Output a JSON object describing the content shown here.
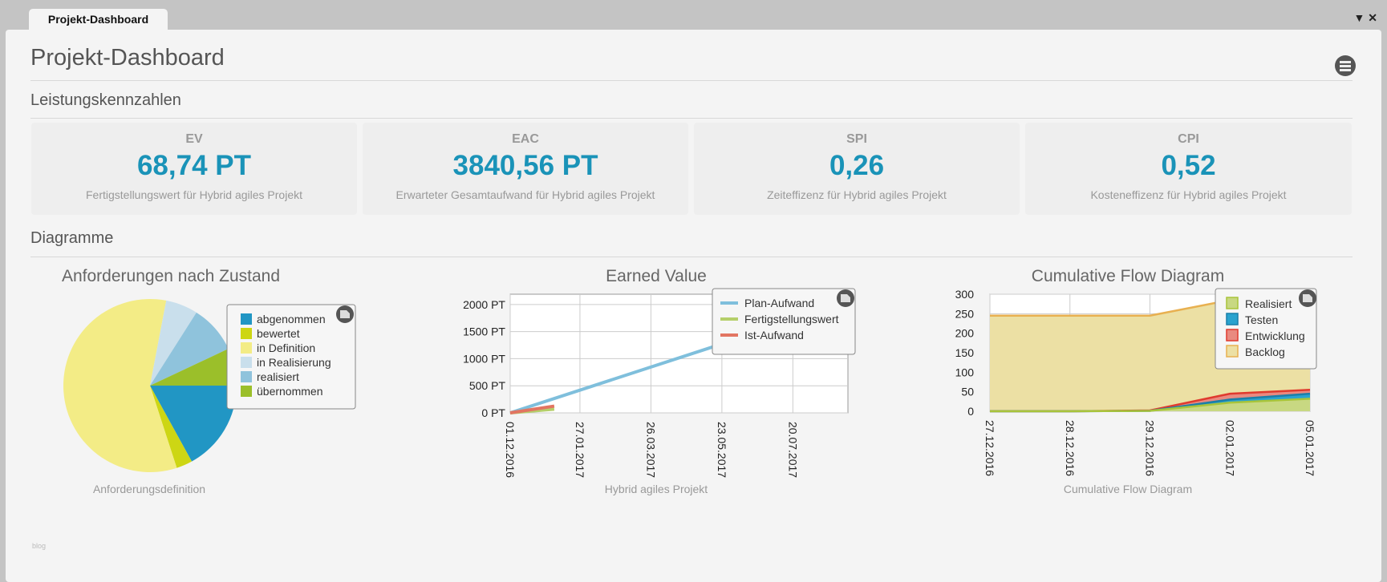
{
  "tab": {
    "label": "Projekt-Dashboard"
  },
  "window_controls": {
    "dropdown": "▼",
    "close": "✕"
  },
  "page": {
    "title": "Projekt-Dashboard",
    "sections": {
      "kpi": "Leistungskennzahlen",
      "charts": "Diagramme"
    },
    "footer_text": "blog"
  },
  "kpis": [
    {
      "label": "EV",
      "value": "68,74 PT",
      "desc": "Fertigstellungswert für Hybrid agiles Projekt"
    },
    {
      "label": "EAC",
      "value": "3840,56 PT",
      "desc": "Erwarteter Gesamtaufwand für Hybrid agiles Projekt"
    },
    {
      "label": "SPI",
      "value": "0,26",
      "desc": "Zeiteffizenz für Hybrid agiles Projekt"
    },
    {
      "label": "CPI",
      "value": "0,52",
      "desc": "Kosteneffizenz für Hybrid agiles Projekt"
    }
  ],
  "colors": {
    "accent": "#1a93b8"
  },
  "chart_data": [
    {
      "type": "pie",
      "title": "Anforderungen nach Zustand",
      "subtitle": "Anforderungsdefinition",
      "legend": "right",
      "categories": [
        "abgenommen",
        "bewertet",
        "in Definition",
        "in Realisierung",
        "realisiert",
        "übernommen"
      ],
      "values": [
        17,
        3,
        58,
        6,
        9,
        7
      ],
      "colors": [
        "#2196c4",
        "#cdd614",
        "#f3ec86",
        "#c9dfec",
        "#8fc3dc",
        "#9bbf2a"
      ]
    },
    {
      "type": "line",
      "title": "Earned Value",
      "subtitle": "Hybrid agiles Projekt",
      "legend": "top-right",
      "grid": true,
      "ylim": [
        0,
        2190
      ],
      "yticks": [
        0,
        500,
        1000,
        1500,
        2000
      ],
      "ytick_labels": [
        "0 PT",
        "500 PT",
        "1000 PT",
        "1500 PT",
        "2000 PT"
      ],
      "xlim": [
        "01.12.2016",
        "03.09.2017"
      ],
      "xticks": [
        "01.12.2016",
        "27.01.2017",
        "26.03.2017",
        "23.05.2017",
        "20.07.2017"
      ],
      "series": [
        {
          "name": "Plan-Aufwand",
          "color": "#7fbfdc",
          "x": [
            "01.12.2016",
            "03.09.2017"
          ],
          "y": [
            0,
            2030
          ]
        },
        {
          "name": "Fertigstellungswert",
          "color": "#b5cf6a",
          "x": [
            "01.12.2016",
            "06.01.2017"
          ],
          "y": [
            0,
            69
          ]
        },
        {
          "name": "Ist-Aufwand",
          "color": "#e27562",
          "x": [
            "01.12.2016",
            "06.01.2017"
          ],
          "y": [
            0,
            125
          ]
        }
      ]
    },
    {
      "type": "area",
      "stacked": true,
      "title": "Cumulative Flow Diagram",
      "subtitle": "Cumulative Flow Diagram",
      "legend": "top-right",
      "grid": true,
      "ylim": [
        0,
        300
      ],
      "yticks": [
        0,
        50,
        100,
        150,
        200,
        250,
        300
      ],
      "categories": [
        "27.12.2016",
        "28.12.2016",
        "29.12.2016",
        "02.01.2017",
        "05.01.2017"
      ],
      "series": [
        {
          "name": "Realisiert",
          "color": "#a8c43a",
          "fill": "#c8d882",
          "values": [
            0,
            0,
            1,
            22,
            32
          ]
        },
        {
          "name": "Testen",
          "color": "#1b7fa8",
          "fill": "#2aa3cf",
          "values": [
            0,
            0,
            0,
            8,
            13
          ]
        },
        {
          "name": "Entwicklung",
          "color": "#e03a2e",
          "fill": "#e98a80",
          "values": [
            0,
            0,
            1,
            15,
            10
          ]
        },
        {
          "name": "Backlog",
          "color": "#e8b050",
          "fill": "#ece0a4",
          "values": [
            245,
            245,
            243,
            240,
            235
          ]
        }
      ]
    }
  ]
}
